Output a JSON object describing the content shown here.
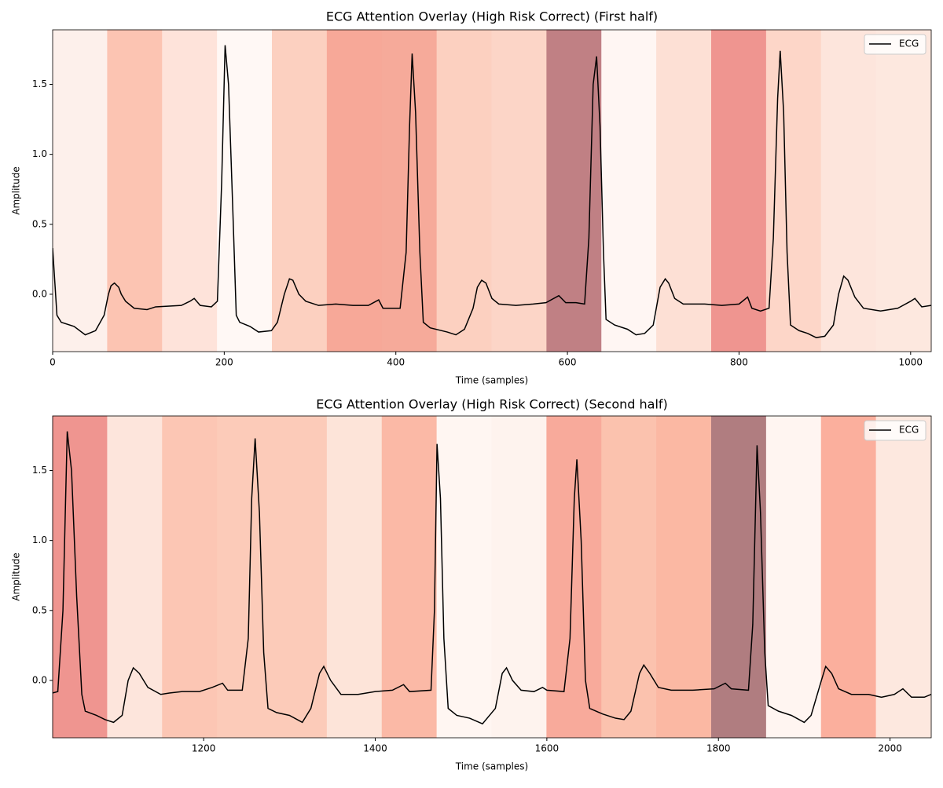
{
  "chart_data": [
    {
      "type": "line",
      "title": "ECG Attention Overlay (High Risk Correct) (First half)",
      "xlabel": "Time (samples)",
      "ylabel": "Amplitude",
      "xlim": [
        0,
        1024
      ],
      "ylim": [
        -0.41,
        1.89
      ],
      "xticks": [
        0,
        200,
        400,
        600,
        800,
        1000
      ],
      "yticks": [
        {
          "value": 0,
          "label": "0.0"
        },
        {
          "value": 0.5,
          "label": "0.5"
        },
        {
          "value": 1,
          "label": "1.0"
        },
        {
          "value": 1.5,
          "label": "1.5"
        }
      ],
      "legend": "upper right",
      "band_edges": [
        0,
        64,
        128,
        192,
        256,
        320,
        384,
        448,
        512,
        576,
        640,
        704,
        768,
        832,
        896,
        960,
        1024
      ],
      "band_colors": [
        "#fdf0eb",
        "#fcc4b2",
        "#fee3da",
        "#fff8f5",
        "#fcd0c0",
        "#f7a898",
        "#f6aa9a",
        "#fcd0c0",
        "#fcd5c7",
        "#c08084",
        "#fff6f3",
        "#fde0d5",
        "#ef9590",
        "#fdd6c8",
        "#fde5dc",
        "#fde8df"
      ],
      "x": [
        0,
        5,
        10,
        25,
        38,
        50,
        60,
        65,
        68,
        72,
        77,
        80,
        85,
        95,
        110,
        120,
        150,
        160,
        165,
        172,
        185,
        192,
        197,
        201,
        205,
        210,
        214,
        218,
        230,
        240,
        255,
        262,
        270,
        276,
        280,
        287,
        295,
        310,
        330,
        350,
        368,
        380,
        385,
        395,
        405,
        412,
        416,
        419,
        423,
        428,
        432,
        440,
        460,
        470,
        480,
        490,
        495,
        500,
        505,
        512,
        520,
        540,
        560,
        575,
        590,
        598,
        610,
        620,
        625,
        630,
        634,
        638,
        642,
        645,
        655,
        670,
        680,
        690,
        700,
        708,
        714,
        718,
        725,
        735,
        760,
        780,
        800,
        810,
        815,
        825,
        835,
        840,
        845,
        848,
        852,
        856,
        860,
        870,
        880,
        890,
        900,
        910,
        916,
        922,
        927,
        935,
        945,
        965,
        985,
        1000,
        1005,
        1013,
        1024
      ],
      "series": [
        {
          "name": "ECG",
          "color": "#000000",
          "values": [
            0.33,
            -0.15,
            -0.2,
            -0.23,
            -0.29,
            -0.26,
            -0.15,
            0.0,
            0.06,
            0.08,
            0.05,
            0.0,
            -0.05,
            -0.1,
            -0.11,
            -0.09,
            -0.08,
            -0.05,
            -0.03,
            -0.08,
            -0.09,
            -0.05,
            0.8,
            1.78,
            1.5,
            0.6,
            -0.15,
            -0.2,
            -0.23,
            -0.27,
            -0.26,
            -0.2,
            0.0,
            0.11,
            0.1,
            0.0,
            -0.05,
            -0.08,
            -0.07,
            -0.08,
            -0.08,
            -0.04,
            -0.1,
            -0.1,
            -0.1,
            0.3,
            1.2,
            1.72,
            1.3,
            0.3,
            -0.2,
            -0.24,
            -0.27,
            -0.29,
            -0.25,
            -0.1,
            0.05,
            0.1,
            0.08,
            -0.03,
            -0.07,
            -0.08,
            -0.07,
            -0.06,
            -0.01,
            -0.06,
            -0.06,
            -0.07,
            0.4,
            1.5,
            1.7,
            1.2,
            0.3,
            -0.18,
            -0.22,
            -0.25,
            -0.29,
            -0.28,
            -0.22,
            0.05,
            0.11,
            0.08,
            -0.03,
            -0.07,
            -0.07,
            -0.08,
            -0.07,
            -0.02,
            -0.1,
            -0.12,
            -0.1,
            0.4,
            1.4,
            1.74,
            1.3,
            0.3,
            -0.22,
            -0.26,
            -0.28,
            -0.31,
            -0.3,
            -0.22,
            0.0,
            0.13,
            0.1,
            -0.02,
            -0.1,
            -0.12,
            -0.1,
            -0.05,
            -0.03,
            -0.09,
            -0.08
          ]
        }
      ]
    },
    {
      "type": "line",
      "title": "ECG Attention Overlay (High Risk Correct) (Second half)",
      "xlabel": "Time (samples)",
      "ylabel": "Amplitude",
      "xlim": [
        1024,
        2048
      ],
      "ylim": [
        -0.41,
        1.89
      ],
      "xticks": [
        1200,
        1400,
        1600,
        1800,
        2000
      ],
      "yticks": [
        {
          "value": 0,
          "label": "0.0"
        },
        {
          "value": 0.5,
          "label": "0.5"
        },
        {
          "value": 1,
          "label": "1.0"
        },
        {
          "value": 1.5,
          "label": "1.5"
        }
      ],
      "legend": "upper right",
      "band_edges": [
        1024,
        1088,
        1152,
        1216,
        1280,
        1344,
        1408,
        1472,
        1536,
        1600,
        1664,
        1728,
        1792,
        1856,
        1920,
        1984,
        2048
      ],
      "band_colors": [
        "#ef9590",
        "#fde5dc",
        "#fcc6b4",
        "#fccbb9",
        "#fccbb9",
        "#fde4d9",
        "#fbb9a6",
        "#fff6f2",
        "#fef3ee",
        "#f8aa9b",
        "#fbc2ae",
        "#fbb8a3",
        "#b07d80",
        "#fff5f1",
        "#fbaf9d",
        "#fde8df"
      ],
      "x": [
        1024,
        1030,
        1036,
        1041,
        1046,
        1052,
        1058,
        1062,
        1075,
        1085,
        1095,
        1105,
        1112,
        1118,
        1125,
        1135,
        1150,
        1160,
        1175,
        1195,
        1210,
        1222,
        1228,
        1245,
        1252,
        1256,
        1260,
        1265,
        1270,
        1275,
        1285,
        1300,
        1315,
        1325,
        1335,
        1340,
        1348,
        1360,
        1380,
        1400,
        1420,
        1433,
        1440,
        1465,
        1469,
        1472,
        1476,
        1480,
        1485,
        1495,
        1510,
        1525,
        1540,
        1548,
        1553,
        1560,
        1570,
        1585,
        1595,
        1600,
        1620,
        1627,
        1632,
        1635,
        1640,
        1645,
        1650,
        1665,
        1680,
        1690,
        1698,
        1708,
        1713,
        1720,
        1730,
        1745,
        1770,
        1795,
        1808,
        1815,
        1835,
        1840,
        1845,
        1849,
        1854,
        1858,
        1870,
        1885,
        1900,
        1908,
        1920,
        1925,
        1932,
        1940,
        1955,
        1975,
        1990,
        2005,
        2015,
        2025,
        2040,
        2048
      ],
      "series": [
        {
          "name": "ECG",
          "color": "#000000",
          "values": [
            -0.09,
            -0.08,
            0.5,
            1.78,
            1.5,
            0.6,
            -0.1,
            -0.22,
            -0.25,
            -0.28,
            -0.3,
            -0.25,
            0.0,
            0.09,
            0.05,
            -0.05,
            -0.1,
            -0.09,
            -0.08,
            -0.08,
            -0.05,
            -0.02,
            -0.07,
            -0.07,
            0.3,
            1.3,
            1.73,
            1.2,
            0.2,
            -0.2,
            -0.23,
            -0.25,
            -0.3,
            -0.2,
            0.05,
            0.1,
            0.0,
            -0.1,
            -0.1,
            -0.08,
            -0.07,
            -0.03,
            -0.08,
            -0.07,
            0.5,
            1.69,
            1.3,
            0.3,
            -0.2,
            -0.25,
            -0.27,
            -0.31,
            -0.2,
            0.05,
            0.09,
            0.0,
            -0.07,
            -0.08,
            -0.05,
            -0.07,
            -0.08,
            0.3,
            1.3,
            1.58,
            1.0,
            0.0,
            -0.2,
            -0.24,
            -0.27,
            -0.28,
            -0.22,
            0.05,
            0.11,
            0.05,
            -0.05,
            -0.07,
            -0.07,
            -0.06,
            -0.02,
            -0.06,
            -0.07,
            0.4,
            1.68,
            1.2,
            0.2,
            -0.18,
            -0.22,
            -0.25,
            -0.3,
            -0.25,
            0.0,
            0.1,
            0.05,
            -0.06,
            -0.1,
            -0.1,
            -0.12,
            -0.1,
            -0.06,
            -0.12,
            -0.12,
            -0.1
          ]
        }
      ]
    }
  ]
}
